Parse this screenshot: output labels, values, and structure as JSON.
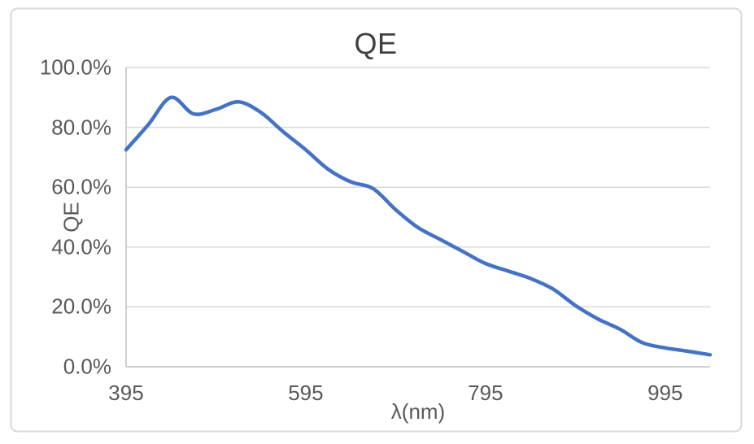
{
  "chart_data": {
    "type": "line",
    "title": "QE",
    "xlabel": "λ(nm)",
    "ylabel": "QE",
    "series_name": "QE",
    "smooth": true,
    "grid": "horizontal",
    "legend": "none",
    "x": [
      395,
      420,
      445,
      470,
      495,
      520,
      545,
      570,
      595,
      620,
      645,
      670,
      695,
      720,
      745,
      770,
      795,
      820,
      845,
      870,
      895,
      920,
      945,
      970,
      995,
      1020,
      1045
    ],
    "y_percent": [
      72.5,
      81.0,
      90.0,
      84.5,
      86.0,
      88.5,
      85.0,
      78.5,
      72.5,
      66.0,
      61.8,
      59.5,
      52.5,
      46.5,
      42.5,
      38.5,
      34.5,
      32.0,
      29.5,
      26.0,
      20.5,
      16.0,
      12.5,
      8.0,
      6.3,
      5.2,
      4.0
    ],
    "xlim": [
      395,
      1045
    ],
    "ylim": [
      0,
      100
    ],
    "xtick_values": [
      395,
      595,
      795,
      995
    ],
    "xtick_labels": [
      "395",
      "595",
      "795",
      "995"
    ],
    "ytick_values": [
      100,
      80,
      60,
      40,
      20,
      0
    ],
    "ytick_labels": [
      "100.0%",
      "80.0%",
      "60.0%",
      "40.0%",
      "20.0%",
      "0.0%"
    ],
    "colors": {
      "line": "#4472C4",
      "gridline": "#D9D9D9",
      "axis_line": "#BFBFBF",
      "chart_border": "#D9D9D9",
      "title_text": "#404040",
      "tick_text": "#595959"
    }
  }
}
